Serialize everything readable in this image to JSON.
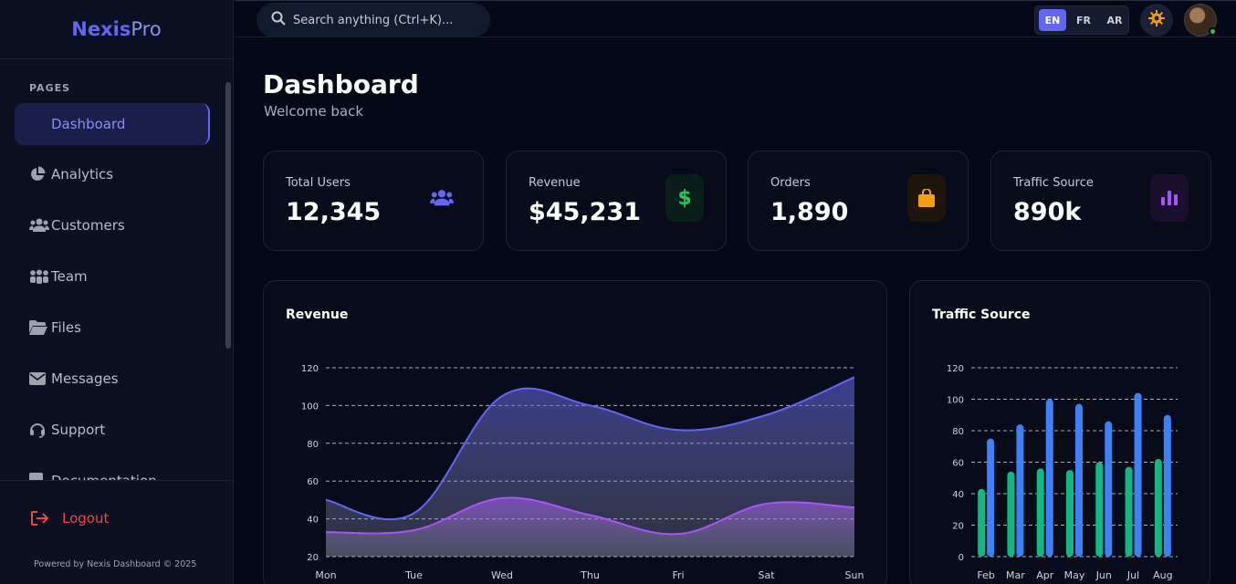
{
  "brand": {
    "part1": "Nexis",
    "part2": "Pro"
  },
  "sidebar": {
    "section_label": "PAGES",
    "items": [
      {
        "label": "Dashboard",
        "icon": "dashboard-icon"
      },
      {
        "label": "Analytics",
        "icon": "pie-chart-icon"
      },
      {
        "label": "Customers",
        "icon": "users-icon"
      },
      {
        "label": "Team",
        "icon": "team-icon"
      },
      {
        "label": "Files",
        "icon": "folder-icon"
      },
      {
        "label": "Messages",
        "icon": "envelope-icon"
      },
      {
        "label": "Support",
        "icon": "headset-icon"
      },
      {
        "label": "Documentation",
        "icon": "document-icon"
      }
    ],
    "logout_label": "Logout",
    "powered_by": "Powered by Nexis Dashboard © 2025"
  },
  "header": {
    "search_placeholder": "Search anything (Ctrl+K)...",
    "languages": [
      "EN",
      "FR",
      "AR"
    ],
    "active_language": "EN"
  },
  "page": {
    "title": "Dashboard",
    "subtitle": "Welcome back"
  },
  "stats": [
    {
      "label": "Total Users",
      "value": "12,345",
      "icon": "users-icon",
      "color": "#6366f1"
    },
    {
      "label": "Revenue",
      "value": "$45,231",
      "icon": "dollar-icon",
      "color": "#22c55e"
    },
    {
      "label": "Orders",
      "value": "1,890",
      "icon": "shopping-bag-icon",
      "color": "#f59e0b"
    },
    {
      "label": "Traffic Source",
      "value": "890k",
      "icon": "bar-chart-icon",
      "color": "#a855f7"
    }
  ],
  "chart_data": [
    {
      "type": "area",
      "title": "Revenue",
      "categories": [
        "Mon",
        "Tue",
        "Wed",
        "Thu",
        "Fri",
        "Sat",
        "Sun"
      ],
      "series": [
        {
          "values": [
            50,
            43,
            105,
            100,
            87,
            95,
            115
          ],
          "color": "#6366f1"
        },
        {
          "values": [
            33,
            34,
            51,
            42,
            32,
            48,
            46
          ],
          "color": "#a855f7"
        }
      ],
      "yticks": [
        20,
        40,
        60,
        80,
        100,
        120
      ],
      "ylim": [
        20,
        120
      ],
      "grid": true
    },
    {
      "type": "bar",
      "title": "Traffic Source",
      "categories": [
        "Feb",
        "Mar",
        "Apr",
        "May",
        "Jun",
        "Jul",
        "Aug"
      ],
      "series": [
        {
          "values": [
            43,
            54,
            56,
            55,
            60,
            57,
            62
          ],
          "color": "#10b981"
        },
        {
          "values": [
            75,
            84,
            100,
            97,
            86,
            104,
            90
          ],
          "color": "#3b82f6"
        }
      ],
      "yticks": [
        0,
        20,
        40,
        60,
        80,
        100,
        120
      ],
      "ylim": [
        0,
        120
      ],
      "grid": true
    }
  ]
}
